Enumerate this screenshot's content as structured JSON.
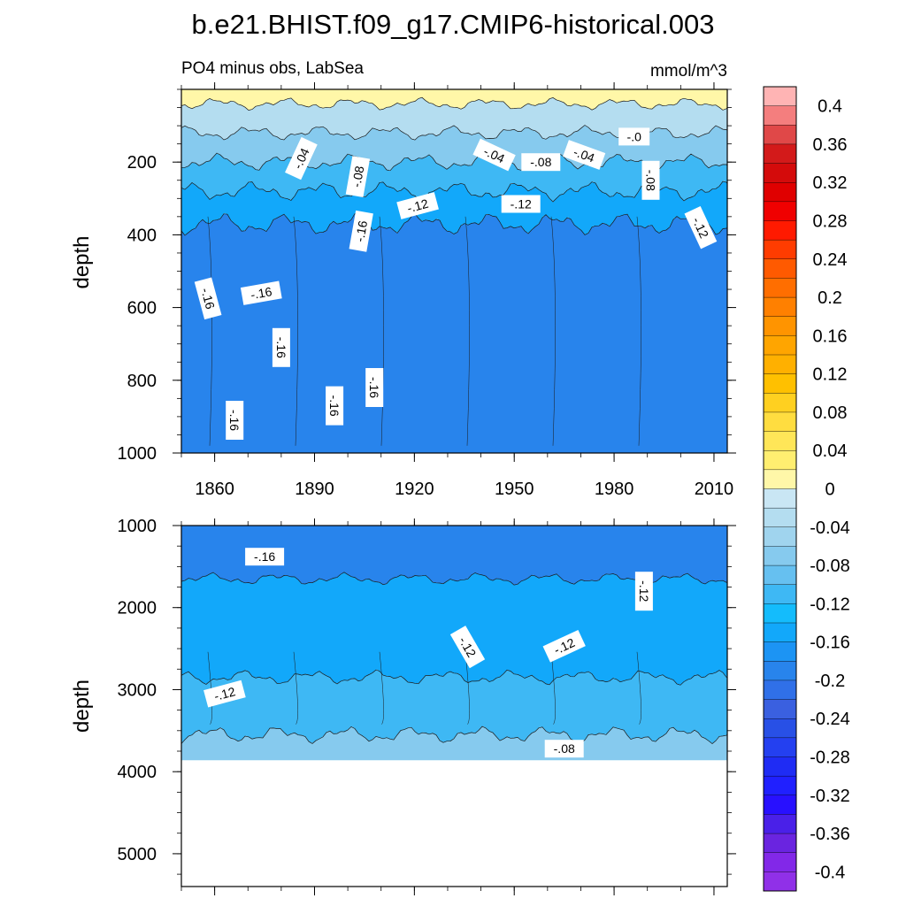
{
  "chart_data": {
    "type": "contour",
    "title": "b.e21.BHIST.f09_g17.CMIP6-historical.003",
    "subtitle_left": "PO4 minus obs, LabSea",
    "subtitle_right": "mmol/m^3",
    "ylabel": "depth",
    "x_range": [
      1850,
      2014
    ],
    "x_ticks": [
      "1860",
      "1890",
      "1920",
      "1950",
      "1980",
      "2010"
    ],
    "x_tick_values": [
      1860,
      1890,
      1920,
      1950,
      1980,
      2010
    ],
    "panels": [
      {
        "name": "upper",
        "ylim": [
          0,
          1000
        ],
        "y_inverted": true,
        "y_ticks": [
          "200",
          "400",
          "600",
          "800",
          "1000"
        ],
        "y_tick_values": [
          200,
          400,
          600,
          800,
          1000
        ],
        "bands": [
          {
            "from": 0,
            "to": 40,
            "value": 0.02
          },
          {
            "from": 40,
            "to": 120,
            "value": -0.02
          },
          {
            "from": 120,
            "to": 200,
            "value": -0.06
          },
          {
            "from": 200,
            "to": 280,
            "value": -0.1
          },
          {
            "from": 280,
            "to": 370,
            "value": -0.14
          },
          {
            "from": 370,
            "to": 1000,
            "value": -0.18
          }
        ],
        "contour_labels": [
          {
            "text": "-.04",
            "x": 1886,
            "y": 190,
            "angle": -65
          },
          {
            "text": "-.08",
            "x": 1903,
            "y": 240,
            "angle": -80
          },
          {
            "text": "-.16",
            "x": 1904,
            "y": 390,
            "angle": -80
          },
          {
            "text": "-.12",
            "x": 1921,
            "y": 320,
            "angle": -15
          },
          {
            "text": "-.04",
            "x": 1944,
            "y": 180,
            "angle": 25
          },
          {
            "text": "-.08",
            "x": 1958,
            "y": 200,
            "angle": 0
          },
          {
            "text": "-.04",
            "x": 1971,
            "y": 180,
            "angle": 20
          },
          {
            "text": "-.0",
            "x": 1986,
            "y": 130,
            "angle": 0
          },
          {
            "text": "-.12",
            "x": 1952,
            "y": 315,
            "angle": 0
          },
          {
            "text": "-.08",
            "x": 1991,
            "y": 250,
            "angle": 90
          },
          {
            "text": "-.12",
            "x": 2006,
            "y": 380,
            "angle": 65
          },
          {
            "text": "-.16",
            "x": 1858,
            "y": 575,
            "angle": 75
          },
          {
            "text": "-.16",
            "x": 1874,
            "y": 560,
            "angle": -10
          },
          {
            "text": "-.16",
            "x": 1880,
            "y": 710,
            "angle": 90
          },
          {
            "text": "-.16",
            "x": 1866,
            "y": 910,
            "angle": 90
          },
          {
            "text": "-.16",
            "x": 1896,
            "y": 870,
            "angle": 90
          },
          {
            "text": "-.16",
            "x": 1908,
            "y": 820,
            "angle": 90
          }
        ]
      },
      {
        "name": "lower",
        "ylim": [
          1000,
          5400
        ],
        "y_inverted": true,
        "y_ticks": [
          "1000",
          "2000",
          "3000",
          "4000",
          "5000"
        ],
        "y_tick_values": [
          1000,
          2000,
          3000,
          4000,
          5000
        ],
        "bottom_depth": 3860,
        "bands": [
          {
            "from": 1000,
            "to": 1650,
            "value": -0.18
          },
          {
            "from": 1650,
            "to": 2850,
            "value": -0.14
          },
          {
            "from": 2850,
            "to": 3550,
            "value": -0.1
          },
          {
            "from": 3550,
            "to": 3860,
            "value": -0.06
          }
        ],
        "contour_labels": [
          {
            "text": "-.16",
            "x": 1875,
            "y": 1380,
            "angle": 0
          },
          {
            "text": "-.12",
            "x": 1989,
            "y": 1800,
            "angle": 90
          },
          {
            "text": "-.12",
            "x": 1936,
            "y": 2480,
            "angle": 60
          },
          {
            "text": "-.12",
            "x": 1965,
            "y": 2470,
            "angle": -25
          },
          {
            "text": "-.12",
            "x": 1863,
            "y": 3050,
            "angle": -15
          },
          {
            "text": "-.08",
            "x": 1965,
            "y": 3720,
            "angle": 0
          }
        ]
      }
    ],
    "colorbar": {
      "min": -0.42,
      "max": 0.42,
      "step": 0.02,
      "labels": [
        "0.4",
        "0.36",
        "0.32",
        "0.28",
        "0.24",
        "0.2",
        "0.16",
        "0.12",
        "0.08",
        "0.04",
        "0",
        "-0.04",
        "-0.08",
        "-0.12",
        "-0.16",
        "-0.2",
        "-0.24",
        "-0.28",
        "-0.32",
        "-0.36",
        "-0.4"
      ],
      "label_values": [
        0.4,
        0.36,
        0.32,
        0.28,
        0.24,
        0.2,
        0.16,
        0.12,
        0.08,
        0.04,
        0,
        -0.04,
        -0.08,
        -0.12,
        -0.16,
        -0.2,
        -0.24,
        -0.28,
        -0.32,
        -0.36,
        -0.4
      ],
      "colors": [
        "#FFB4B4",
        "#F47E7E",
        "#E04848",
        "#D31A1A",
        "#D40B0B",
        "#E00000",
        "#F00000",
        "#FF1A00",
        "#FF3C00",
        "#FF5A00",
        "#FF6E00",
        "#FF8000",
        "#FF9400",
        "#FFA500",
        "#FFB000",
        "#FFC000",
        "#FFD020",
        "#FFDD40",
        "#FFE658",
        "#FFEE70",
        "#FFF7A8",
        "#C9E6F4",
        "#B4DDF0",
        "#A0D4EE",
        "#86CAEE",
        "#66C0F0",
        "#3EB8F4",
        "#14BCFC",
        "#12A8FA",
        "#1C94F4",
        "#2884EC",
        "#3070E8",
        "#3A60E0",
        "#2850E6",
        "#2440F0",
        "#1F2CF4",
        "#2020FF",
        "#2810FF",
        "#4A20E8",
        "#6A24E0",
        "#8228E8",
        "#9030E8"
      ]
    }
  }
}
